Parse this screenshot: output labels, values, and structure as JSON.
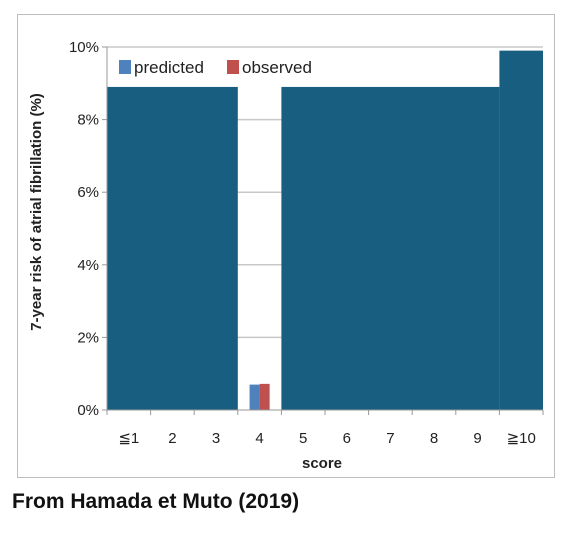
{
  "caption": "From Hamada et Muto (2019)",
  "colors": {
    "predicted": "#4f81bd",
    "observed": "#c0504d",
    "overlay": "#175e80",
    "grid": "#c8c8c8",
    "axis": "#999999"
  },
  "chart_data": {
    "type": "bar",
    "title": "",
    "xlabel": "score",
    "ylabel": "7-year risk of atrial fibrillation (%)",
    "categories": [
      "≦1",
      "2",
      "3",
      "4",
      "5",
      "6",
      "7",
      "8",
      "9",
      "≧10"
    ],
    "ylim": [
      0,
      10
    ],
    "yticks": [
      0,
      2,
      4,
      6,
      8,
      10
    ],
    "ytick_labels": [
      "0%",
      "2%",
      "4%",
      "6%",
      "8%",
      "10%"
    ],
    "grid": true,
    "legend_position": "top-left",
    "series": [
      {
        "name": "predicted",
        "values": [
          null,
          null,
          null,
          0.7,
          null,
          null,
          null,
          null,
          null,
          null
        ]
      },
      {
        "name": "observed",
        "values": [
          null,
          null,
          null,
          0.72,
          null,
          null,
          null,
          null,
          null,
          null
        ]
      }
    ],
    "overlay_blocks": [
      {
        "from_category": 0,
        "to_category": 2,
        "level": 8.9
      },
      {
        "from_category": 4,
        "to_category": 8,
        "level": 8.9
      },
      {
        "from_category": 9,
        "to_category": 9,
        "level": 9.9
      }
    ]
  }
}
